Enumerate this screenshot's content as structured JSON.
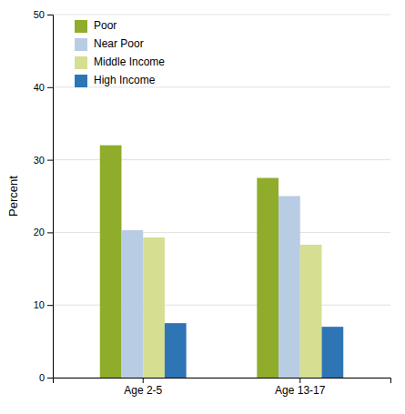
{
  "chart_data": {
    "type": "bar",
    "categories": [
      "Age 2-5",
      "Age 13-17"
    ],
    "series": [
      {
        "name": "Poor",
        "color": "#8fad2b",
        "values": [
          32,
          27.5
        ]
      },
      {
        "name": "Near Poor",
        "color": "#b8cce4",
        "values": [
          20.3,
          25.0
        ]
      },
      {
        "name": "Middle Income",
        "color": "#d6de91",
        "values": [
          19.3,
          18.3
        ]
      },
      {
        "name": "High Income",
        "color": "#2e75b6",
        "values": [
          7.5,
          7.0
        ]
      }
    ],
    "ylabel": "Percent",
    "ylim": [
      0,
      50
    ],
    "yticks": [
      0,
      10,
      20,
      30,
      40,
      50
    ],
    "grid": true,
    "legend": "upper left"
  }
}
